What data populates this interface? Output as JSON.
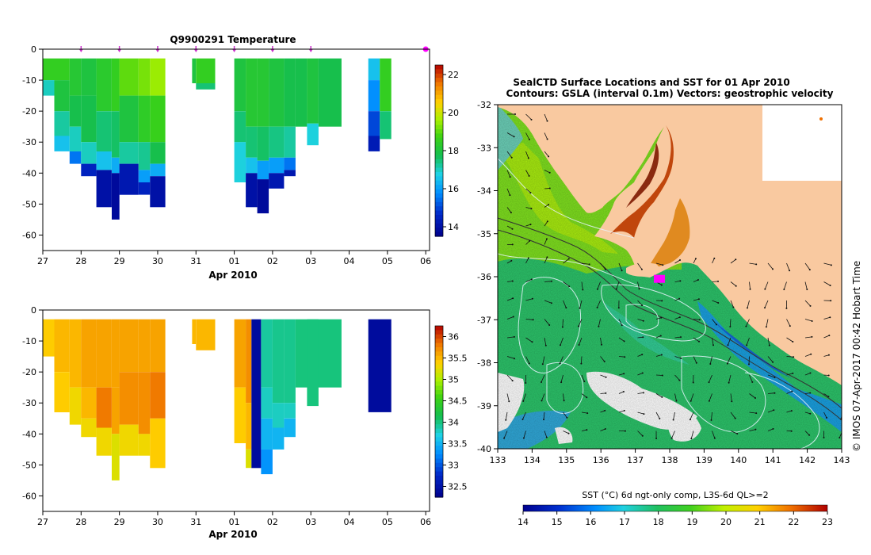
{
  "main_title": "Q9900291  Temperature",
  "map_title_line1": "SealCTD Surface Locations and SST for 01 Apr 2010",
  "map_title_line2": "Contours: GSLA (interval 0.1m) Vectors: geostrophic velocity",
  "side_credit": "© IMOS 07-Apr-2017 00:42 Hobart Time",
  "sst_label": "SST (°C) 6d ngt-only comp, L3S-6d QL>=2",
  "time_axis": {
    "ticks": [
      "27",
      "28",
      "29",
      "30",
      "31",
      "01",
      "02",
      "03",
      "04",
      "05",
      "06"
    ],
    "month_label": "Apr 2010"
  },
  "colors": {
    "land": "#f9c9a0",
    "profile_marker": "#cc33cc",
    "seal_position": "#ff00ff"
  },
  "chart_data": [
    {
      "type": "heatmap",
      "name": "temperature-section",
      "title": "Q9900291  Temperature",
      "xlabel": "Apr 2010",
      "ylabel": "",
      "ylim": [
        -65,
        0
      ],
      "yticks": [
        0,
        -10,
        -20,
        -30,
        -40,
        -50,
        -60
      ],
      "colorbar": {
        "min": 13.5,
        "max": 22.5,
        "ticks": [
          22,
          20,
          18,
          16,
          14
        ]
      },
      "profiles": [
        {
          "start": 27.0,
          "end": 27.3,
          "bottom": -15,
          "layers": [
            [
              0,
              -10,
              18.5
            ],
            [
              -10,
              -15,
              17.0
            ]
          ]
        },
        {
          "start": 27.3,
          "end": 27.7,
          "bottom": -33,
          "layers": [
            [
              0,
              -10,
              18.5
            ],
            [
              -10,
              -20,
              18.0
            ],
            [
              -20,
              -28,
              17.2
            ],
            [
              -28,
              -33,
              16.5
            ]
          ]
        },
        {
          "start": 27.7,
          "end": 28.0,
          "bottom": -37,
          "layers": [
            [
              0,
              -15,
              18.2
            ],
            [
              -15,
              -25,
              17.8
            ],
            [
              -25,
              -33,
              17.0
            ],
            [
              -33,
              -37,
              15.5
            ]
          ]
        },
        {
          "start": 28.0,
          "end": 28.4,
          "bottom": -41,
          "layers": [
            [
              0,
              -15,
              18.0
            ],
            [
              -15,
              -30,
              17.8
            ],
            [
              -30,
              -37,
              17.0
            ],
            [
              -37,
              -41,
              14.5
            ]
          ]
        },
        {
          "start": 28.4,
          "end": 28.8,
          "bottom": -51,
          "layers": [
            [
              0,
              -20,
              18.3
            ],
            [
              -20,
              -33,
              17.5
            ],
            [
              -33,
              -39,
              16.5
            ],
            [
              -39,
              -51,
              14.0
            ]
          ]
        },
        {
          "start": 28.8,
          "end": 29.0,
          "bottom": -55,
          "layers": [
            [
              0,
              -20,
              18.5
            ],
            [
              -20,
              -35,
              17.6
            ],
            [
              -35,
              -40,
              16.2
            ],
            [
              -40,
              -55,
              13.8
            ]
          ]
        },
        {
          "start": 29.0,
          "end": 29.5,
          "bottom": -47,
          "layers": [
            [
              0,
              -15,
              19.0
            ],
            [
              -15,
              -30,
              18.0
            ],
            [
              -30,
              -37,
              17.2
            ],
            [
              -37,
              -47,
              14.2
            ]
          ]
        },
        {
          "start": 29.5,
          "end": 29.8,
          "bottom": -47,
          "layers": [
            [
              0,
              -15,
              19.2
            ],
            [
              -15,
              -30,
              18.4
            ],
            [
              -30,
              -39,
              17.3
            ],
            [
              -39,
              -43,
              16.0
            ],
            [
              -43,
              -47,
              14.5
            ]
          ]
        },
        {
          "start": 29.8,
          "end": 30.2,
          "bottom": -51,
          "layers": [
            [
              0,
              -15,
              19.5
            ],
            [
              -15,
              -30,
              18.6
            ],
            [
              -30,
              -37,
              17.8
            ],
            [
              -37,
              -41,
              16.2
            ],
            [
              -41,
              -51,
              14.0
            ]
          ]
        },
        {
          "start": 30.9,
          "end": 31.0,
          "bottom": -11,
          "layers": [
            [
              0,
              -11,
              18.0
            ]
          ]
        },
        {
          "start": 31.0,
          "end": 31.5,
          "bottom": -13,
          "layers": [
            [
              0,
              -11,
              18.5
            ],
            [
              -11,
              -13,
              17.5
            ]
          ]
        },
        {
          "start": 32.0,
          "end": 32.3,
          "bottom": -43,
          "layers": [
            [
              0,
              -20,
              18.0
            ],
            [
              -20,
              -30,
              17.5
            ],
            [
              -30,
              -43,
              16.8
            ]
          ]
        },
        {
          "start": 32.3,
          "end": 32.6,
          "bottom": -51,
          "layers": [
            [
              0,
              -25,
              18.2
            ],
            [
              -25,
              -35,
              17.5
            ],
            [
              -35,
              -40,
              16.5
            ],
            [
              -40,
              -51,
              14.0
            ]
          ]
        },
        {
          "start": 32.6,
          "end": 32.9,
          "bottom": -53,
          "layers": [
            [
              0,
              -25,
              18.2
            ],
            [
              -25,
              -36,
              17.6
            ],
            [
              -36,
              -42,
              16.0
            ],
            [
              -42,
              -53,
              13.8
            ]
          ]
        },
        {
          "start": 32.9,
          "end": 33.3,
          "bottom": -45,
          "layers": [
            [
              0,
              -25,
              18.0
            ],
            [
              -25,
              -35,
              17.4
            ],
            [
              -35,
              -40,
              16.0
            ],
            [
              -40,
              -45,
              14.2
            ]
          ]
        },
        {
          "start": 33.3,
          "end": 33.6,
          "bottom": -41,
          "layers": [
            [
              0,
              -25,
              17.8
            ],
            [
              -25,
              -35,
              17.2
            ],
            [
              -35,
              -39,
              15.5
            ],
            [
              -39,
              -41,
              14.2
            ]
          ]
        },
        {
          "start": 33.6,
          "end": 33.9,
          "bottom": -25,
          "layers": [
            [
              0,
              -25,
              17.8
            ]
          ]
        },
        {
          "start": 33.9,
          "end": 34.2,
          "bottom": -31,
          "layers": [
            [
              0,
              -24,
              18.0
            ],
            [
              -24,
              -31,
              16.8
            ]
          ]
        },
        {
          "start": 34.2,
          "end": 34.8,
          "bottom": -25,
          "layers": [
            [
              0,
              -25,
              17.8
            ]
          ]
        },
        {
          "start": 35.5,
          "end": 35.8,
          "bottom": -33,
          "layers": [
            [
              0,
              -10,
              16.5
            ],
            [
              -10,
              -20,
              15.8
            ],
            [
              -20,
              -28,
              15.0
            ],
            [
              -28,
              -33,
              14.3
            ]
          ]
        },
        {
          "start": 35.8,
          "end": 36.1,
          "bottom": -29,
          "layers": [
            [
              0,
              -20,
              18.5
            ],
            [
              -20,
              -29,
              17.5
            ]
          ]
        }
      ],
      "profile_markers": [
        28.0,
        29.0,
        30.0,
        31.0,
        32.0,
        33.0,
        34.0
      ]
    },
    {
      "type": "heatmap",
      "name": "salinity-section",
      "title": "",
      "xlabel": "Apr 2010",
      "ylabel": "",
      "ylim": [
        -65,
        0
      ],
      "yticks": [
        0,
        -10,
        -20,
        -30,
        -40,
        -50,
        -60
      ],
      "colorbar": {
        "min": 32.25,
        "max": 36.25,
        "ticks": [
          36,
          35.5,
          35,
          34.5,
          34,
          33.5,
          33,
          32.5
        ]
      },
      "profiles": [
        {
          "start": 27.0,
          "end": 27.3,
          "bottom": -15,
          "layers": [
            [
              0,
              -15,
              35.4
            ]
          ]
        },
        {
          "start": 27.3,
          "end": 27.7,
          "bottom": -33,
          "layers": [
            [
              0,
              -20,
              35.5
            ],
            [
              -20,
              -33,
              35.4
            ]
          ]
        },
        {
          "start": 27.7,
          "end": 28.0,
          "bottom": -37,
          "layers": [
            [
              0,
              -25,
              35.5
            ],
            [
              -25,
              -37,
              35.3
            ]
          ]
        },
        {
          "start": 28.0,
          "end": 28.4,
          "bottom": -41,
          "layers": [
            [
              0,
              -25,
              35.6
            ],
            [
              -25,
              -35,
              35.5
            ],
            [
              -35,
              -41,
              35.3
            ]
          ]
        },
        {
          "start": 28.4,
          "end": 28.8,
          "bottom": -47,
          "layers": [
            [
              0,
              -25,
              35.6
            ],
            [
              -25,
              -38,
              35.8
            ],
            [
              -38,
              -47,
              35.3
            ]
          ]
        },
        {
          "start": 28.8,
          "end": 29.0,
          "bottom": -55,
          "layers": [
            [
              0,
              -25,
              35.6
            ],
            [
              -25,
              -40,
              35.6
            ],
            [
              -40,
              -55,
              35.2
            ]
          ]
        },
        {
          "start": 29.0,
          "end": 29.5,
          "bottom": -47,
          "layers": [
            [
              0,
              -20,
              35.6
            ],
            [
              -20,
              -37,
              35.7
            ],
            [
              -37,
              -47,
              35.3
            ]
          ]
        },
        {
          "start": 29.5,
          "end": 29.8,
          "bottom": -47,
          "layers": [
            [
              0,
              -20,
              35.6
            ],
            [
              -20,
              -40,
              35.7
            ],
            [
              -40,
              -47,
              35.3
            ]
          ]
        },
        {
          "start": 29.8,
          "end": 30.2,
          "bottom": -51,
          "layers": [
            [
              0,
              -20,
              35.6
            ],
            [
              -20,
              -35,
              35.8
            ],
            [
              -35,
              -51,
              35.4
            ]
          ]
        },
        {
          "start": 30.9,
          "end": 31.0,
          "bottom": -11,
          "layers": [
            [
              0,
              -11,
              35.5
            ]
          ]
        },
        {
          "start": 31.0,
          "end": 31.5,
          "bottom": -13,
          "layers": [
            [
              0,
              -13,
              35.5
            ]
          ]
        },
        {
          "start": 32.0,
          "end": 32.3,
          "bottom": -43,
          "layers": [
            [
              0,
              -25,
              35.6
            ],
            [
              -25,
              -43,
              35.4
            ]
          ]
        },
        {
          "start": 32.3,
          "end": 32.45,
          "bottom": -51,
          "layers": [
            [
              0,
              -30,
              35.7
            ],
            [
              -30,
              -45,
              35.5
            ],
            [
              -45,
              -51,
              35.2
            ]
          ]
        },
        {
          "start": 32.45,
          "end": 32.7,
          "bottom": -51,
          "layers": [
            [
              0,
              -51,
              32.4
            ]
          ]
        },
        {
          "start": 32.7,
          "end": 33.0,
          "bottom": -53,
          "layers": [
            [
              0,
              -25,
              33.9
            ],
            [
              -25,
              -35,
              33.8
            ],
            [
              -35,
              -45,
              33.5
            ],
            [
              -45,
              -53,
              33.3
            ]
          ]
        },
        {
          "start": 33.0,
          "end": 33.3,
          "bottom": -45,
          "layers": [
            [
              0,
              -30,
              33.95
            ],
            [
              -30,
              -38,
              33.8
            ],
            [
              -38,
              -45,
              33.5
            ]
          ]
        },
        {
          "start": 33.3,
          "end": 33.6,
          "bottom": -41,
          "layers": [
            [
              0,
              -30,
              33.95
            ],
            [
              -30,
              -35,
              33.8
            ],
            [
              -35,
              -41,
              33.5
            ]
          ]
        },
        {
          "start": 33.6,
          "end": 34.8,
          "bottom": -25,
          "layers": [
            [
              0,
              -25,
              34.0
            ]
          ]
        },
        {
          "start": 33.9,
          "end": 34.2,
          "bottom": -31,
          "layers": [
            [
              0,
              -31,
              34.0
            ]
          ]
        },
        {
          "start": 35.5,
          "end": 36.1,
          "bottom": -33,
          "layers": [
            [
              0,
              -33,
              32.4
            ]
          ]
        }
      ]
    },
    {
      "type": "heatmap",
      "name": "sst-map",
      "title": "SealCTD Surface Locations and SST for 01 Apr 2010",
      "subtitle": "Contours: GSLA (interval 0.1m) Vectors: geostrophic velocity",
      "xlabel": "",
      "ylabel": "",
      "xlim": [
        133,
        143
      ],
      "ylim": [
        -40,
        -32
      ],
      "xticks": [
        133,
        134,
        135,
        136,
        137,
        138,
        139,
        140,
        141,
        142,
        143
      ],
      "yticks": [
        -32,
        -33,
        -34,
        -35,
        -36,
        -37,
        -38,
        -39,
        -40
      ],
      "colorbar": {
        "min": 14,
        "max": 23,
        "ticks": [
          14,
          15,
          16,
          17,
          18,
          19,
          20,
          21,
          22,
          23
        ],
        "label": "SST (°C) 6d ngt-only comp, L3S-6d QL>=2"
      },
      "seal_position": {
        "lon": 137.7,
        "lat": -36.05
      }
    }
  ]
}
